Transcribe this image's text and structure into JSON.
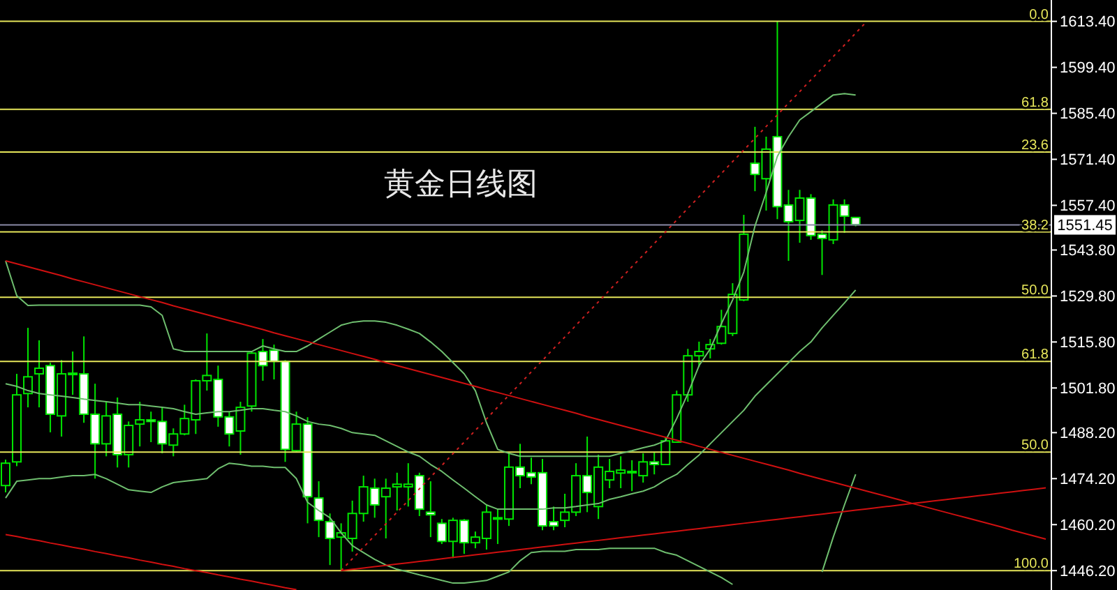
{
  "chart_data": {
    "type": "candlestick",
    "title": "黄金日线图",
    "color": "#00e600",
    "categories": [
      null,
      null,
      null,
      null,
      null,
      null,
      null,
      null,
      null,
      null,
      null,
      null,
      null,
      null,
      null,
      null,
      null,
      null,
      null,
      null,
      null,
      null,
      null,
      null,
      null,
      null,
      null,
      null,
      null,
      null,
      null,
      null,
      null,
      null,
      null,
      null,
      null,
      null,
      null,
      null,
      null,
      null,
      null,
      null,
      null,
      null,
      null,
      null,
      null,
      null,
      null,
      null,
      null,
      null,
      null,
      null,
      null,
      null,
      null,
      null,
      null,
      null,
      null,
      null,
      null,
      null,
      null,
      null,
      null,
      null,
      null,
      null,
      null,
      null,
      null,
      null,
      null,
      null,
      null,
      null,
      null,
      null,
      null,
      null,
      null,
      null,
      null,
      null,
      null,
      null,
      null,
      null,
      null,
      null
    ],
    "ohlc": [
      [
        1472.1,
        1480.0,
        1470.0,
        1478.9
      ],
      [
        1479.3,
        1506.1,
        1478.0,
        1499.7
      ],
      [
        1500.1,
        1520.1,
        1495.9,
        1505.2
      ],
      [
        1506.1,
        1516.3,
        1495.9,
        1507.8
      ],
      [
        1508.6,
        1509.5,
        1488.3,
        1493.8
      ],
      [
        1493.3,
        1510.3,
        1487.0,
        1506.1
      ],
      [
        1506.1,
        1512.9,
        1499.7,
        1506.3
      ],
      [
        1506.1,
        1517.5,
        1491.2,
        1493.8
      ],
      [
        1493.8,
        1503.1,
        1474.2,
        1484.8
      ],
      [
        1484.8,
        1497.6,
        1481.0,
        1493.3
      ],
      [
        1493.8,
        1498.9,
        1477.6,
        1481.5
      ],
      [
        1481.5,
        1491.6,
        1477.6,
        1490.4
      ],
      [
        1490.8,
        1497.6,
        1484.0,
        1492.1
      ],
      [
        1492.1,
        1494.6,
        1485.3,
        1491.6
      ],
      [
        1491.6,
        1495.9,
        1481.9,
        1484.8
      ],
      [
        1484.4,
        1489.5,
        1481.0,
        1487.8
      ],
      [
        1487.8,
        1496.7,
        1487.4,
        1492.5
      ],
      [
        1492.1,
        1504.4,
        1487.8,
        1504.0
      ],
      [
        1504.0,
        1518.4,
        1501.0,
        1505.6
      ],
      [
        1504.4,
        1508.6,
        1490.0,
        1493.0
      ],
      [
        1493.0,
        1494.6,
        1484.0,
        1487.8
      ],
      [
        1488.7,
        1497.6,
        1481.5,
        1495.9
      ],
      [
        1496.3,
        1512.9,
        1494.6,
        1512.4
      ],
      [
        1512.9,
        1516.7,
        1504.0,
        1508.6
      ],
      [
        1513.3,
        1515.0,
        1504.4,
        1509.9
      ],
      [
        1509.9,
        1510.3,
        1479.3,
        1483.1
      ],
      [
        1482.7,
        1494.6,
        1482.2,
        1490.8
      ],
      [
        1490.8,
        1492.9,
        1460.6,
        1468.7
      ],
      [
        1468.3,
        1473.4,
        1456.4,
        1461.5
      ],
      [
        1461.1,
        1463.6,
        1447.9,
        1456.0
      ],
      [
        1456.4,
        1460.6,
        1446.2,
        1457.7
      ],
      [
        1456.0,
        1467.5,
        1452.0,
        1463.6
      ],
      [
        1463.6,
        1475.1,
        1461.1,
        1471.7
      ],
      [
        1471.3,
        1474.2,
        1462.3,
        1466.2
      ],
      [
        1468.7,
        1474.2,
        1456.0,
        1471.3
      ],
      [
        1471.7,
        1476.0,
        1464.5,
        1472.5
      ],
      [
        1471.7,
        1478.9,
        1465.7,
        1472.5
      ],
      [
        1475.1,
        1476.0,
        1462.8,
        1464.9
      ],
      [
        1464.0,
        1473.4,
        1456.4,
        1463.2
      ],
      [
        1460.6,
        1461.9,
        1454.3,
        1455.1
      ],
      [
        1455.1,
        1462.3,
        1450.0,
        1461.5
      ],
      [
        1461.5,
        1461.9,
        1451.3,
        1454.7
      ],
      [
        1454.7,
        1458.1,
        1453.0,
        1456.4
      ],
      [
        1456.0,
        1466.2,
        1452.6,
        1464.0
      ],
      [
        1461.9,
        1464.9,
        1454.3,
        1462.3
      ],
      [
        1461.9,
        1481.9,
        1459.8,
        1477.7
      ],
      [
        1477.7,
        1484.8,
        1471.3,
        1475.1
      ],
      [
        1476.0,
        1480.6,
        1472.5,
        1474.7
      ],
      [
        1476.0,
        1480.2,
        1458.5,
        1459.8
      ],
      [
        1461.1,
        1465.7,
        1458.5,
        1459.8
      ],
      [
        1461.5,
        1469.6,
        1459.4,
        1464.0
      ],
      [
        1464.0,
        1478.9,
        1462.8,
        1475.1
      ],
      [
        1475.1,
        1487.0,
        1464.0,
        1470.0
      ],
      [
        1465.7,
        1481.5,
        1461.9,
        1477.7
      ],
      [
        1473.8,
        1480.2,
        1471.3,
        1476.4
      ],
      [
        1475.9,
        1481.0,
        1471.3,
        1476.8
      ],
      [
        1476.0,
        1479.8,
        1470.4,
        1476.4
      ],
      [
        1475.1,
        1481.9,
        1473.0,
        1479.3
      ],
      [
        1479.3,
        1482.3,
        1475.5,
        1478.5
      ],
      [
        1478.5,
        1487.0,
        1478.5,
        1485.7
      ],
      [
        1485.3,
        1501.0,
        1485.3,
        1499.7
      ],
      [
        1499.7,
        1513.7,
        1497.6,
        1511.6
      ],
      [
        1511.6,
        1515.9,
        1508.2,
        1512.9
      ],
      [
        1513.7,
        1516.7,
        1510.8,
        1515.0
      ],
      [
        1515.4,
        1525.6,
        1515.0,
        1520.5
      ],
      [
        1518.4,
        1533.7,
        1517.6,
        1530.3
      ],
      [
        1528.6,
        1554.5,
        1528.2,
        1548.6
      ],
      [
        1570.2,
        1581.3,
        1561.7,
        1566.8
      ],
      [
        1565.5,
        1578.3,
        1555.8,
        1574.5
      ],
      [
        1578.3,
        1613.4,
        1553.2,
        1557.0
      ],
      [
        1557.5,
        1562.1,
        1540.5,
        1552.4
      ],
      [
        1552.8,
        1562.1,
        1546.0,
        1559.6
      ],
      [
        1559.6,
        1560.8,
        1546.9,
        1548.2
      ],
      [
        1548.6,
        1549.8,
        1536.2,
        1547.3
      ],
      [
        1546.9,
        1559.2,
        1545.6,
        1557.5
      ],
      [
        1557.5,
        1559.2,
        1549.0,
        1554.1
      ],
      [
        1553.7,
        1553.7,
        1551.0,
        1551.5
      ],
      null,
      null,
      null,
      null,
      null,
      null,
      null,
      null,
      null,
      null,
      null,
      null,
      null,
      null,
      null,
      null,
      null
    ],
    "series": [
      {
        "type": "line",
        "color": "#6fbf6f",
        "values": [
          1540.5,
          1529.9,
          1526.9,
          1527.0,
          1527.0,
          1527.0,
          1527.0,
          1527.0,
          1527.0,
          1527.0,
          1527.0,
          1527.0,
          1527.0,
          1526.5,
          1523.9,
          1513.7,
          1512.9,
          1512.9,
          1512.9,
          1512.9,
          1512.9,
          1512.9,
          1512.9,
          1514.6,
          1513.7,
          1512.9,
          1512.9,
          1514.6,
          1516.7,
          1518.8,
          1520.9,
          1521.8,
          1522.2,
          1522.2,
          1521.8,
          1520.9,
          1519.7,
          1518.4,
          1515.8,
          1512.9,
          1509.5,
          1506.1,
          1501.0,
          1491.2,
          1483.1,
          1481.9,
          1481.0,
          1481.0,
          1481.0,
          1481.0,
          1481.0,
          1481.0,
          1481.0,
          1481.0,
          1481.0,
          1481.9,
          1482.7,
          1483.6,
          1484.4,
          1485.7,
          1492.5,
          1500.1,
          1508.6,
          1513.7,
          1521.4,
          1528.6,
          1537.1,
          1551.1,
          1561.3,
          1572.3,
          1578.3,
          1583.4,
          1585.9,
          1588.5,
          1591.0,
          1591.4,
          1591.0,
          null,
          null,
          null,
          null,
          null,
          null,
          null,
          null,
          null,
          null,
          null,
          null,
          null,
          null,
          null,
          null,
          null
        ]
      },
      {
        "type": "line",
        "color": "#6fbf6f",
        "values": [
          1503.1,
          1502.3,
          1501.0,
          1500.1,
          1499.7,
          1499.3,
          1498.9,
          1498.4,
          1498.0,
          1497.6,
          1497.2,
          1496.7,
          1496.7,
          1496.3,
          1495.9,
          1495.5,
          1494.6,
          1493.8,
          1494.2,
          1494.6,
          1494.6,
          1495.0,
          1495.5,
          1495.5,
          1495.0,
          1494.6,
          1493.3,
          1491.6,
          1490.8,
          1490.4,
          1489.5,
          1488.2,
          1487.8,
          1487.4,
          1485.7,
          1484.0,
          1482.3,
          1481.0,
          1478.5,
          1476.4,
          1473.8,
          1471.3,
          1468.7,
          1466.2,
          1464.9,
          1464.9,
          1464.9,
          1464.9,
          1464.9,
          1465.3,
          1465.3,
          1465.7,
          1466.2,
          1466.6,
          1467.9,
          1468.7,
          1469.6,
          1470.4,
          1471.7,
          1473.8,
          1475.5,
          1478.5,
          1481.4,
          1484.8,
          1488.2,
          1491.6,
          1495.0,
          1499.3,
          1502.7,
          1506.1,
          1509.5,
          1512.9,
          1515.8,
          1520.1,
          1523.9,
          1527.7,
          1531.6,
          null,
          null,
          null,
          null,
          null,
          null,
          null,
          null,
          null,
          null,
          null,
          null,
          null,
          null,
          null,
          null,
          null
        ]
      },
      {
        "type": "line",
        "color": "#6fbf6f",
        "values": [
          1468.3,
          1473.4,
          1473.8,
          1474.2,
          1474.2,
          1474.7,
          1475.1,
          1475.1,
          1475.5,
          1474.2,
          1472.5,
          1470.8,
          1470.4,
          1470.0,
          1471.7,
          1473.0,
          1473.4,
          1473.8,
          1474.2,
          1477.2,
          1478.9,
          1478.5,
          1478.0,
          1478.0,
          1477.6,
          1477.6,
          1474.2,
          1467.0,
          1464.5,
          1462.3,
          1457.7,
          1453.8,
          1451.7,
          1449.6,
          1447.9,
          1446.6,
          1445.8,
          1444.9,
          1444.1,
          1443.2,
          1442.4,
          1442.4,
          1442.8,
          1443.2,
          1444.5,
          1445.8,
          1449.2,
          1451.7,
          1452.1,
          1452.1,
          1452.1,
          1452.6,
          1452.6,
          1452.6,
          1453.0,
          1453.0,
          1453.0,
          1453.0,
          1453.0,
          1451.7,
          1450.9,
          1449.2,
          1447.5,
          1445.8,
          1444.1,
          1442.0,
          null,
          null,
          null,
          null,
          null,
          null,
          null,
          1445.8,
          1456.4,
          1466.2,
          1475.5,
          null,
          null,
          null,
          null,
          null,
          null,
          null,
          null,
          null,
          null,
          null,
          null,
          null,
          null,
          null,
          null,
          null
        ]
      },
      {
        "type": "line",
        "color": "#d01010",
        "values": [
          1540.5,
          1539.6,
          1538.7,
          1537.8,
          1536.9,
          1536.0,
          1535.0,
          1534.1,
          1533.2,
          1532.3,
          1531.4,
          1530.5,
          1529.6,
          1528.7,
          1527.8,
          1526.8,
          1525.9,
          1525.0,
          1524.1,
          1523.2,
          1522.3,
          1521.4,
          1520.5,
          1519.6,
          1518.6,
          1517.7,
          1516.8,
          1515.9,
          1515.0,
          1514.1,
          1513.2,
          1512.3,
          1511.4,
          1510.5,
          1509.5,
          1508.6,
          1507.7,
          1506.8,
          1505.9,
          1505.0,
          1504.1,
          1503.2,
          1502.3,
          1501.3,
          1500.4,
          1499.5,
          1498.6,
          1497.7,
          1496.8,
          1495.9,
          1495.0,
          1494.1,
          1493.1,
          1492.2,
          1491.3,
          1490.4,
          1489.5,
          1488.6,
          1487.7,
          1486.8,
          1485.9,
          1485.0,
          1484.0,
          1483.1,
          1482.2,
          1481.3,
          1480.4,
          1479.5,
          1478.6,
          1477.7,
          1476.8,
          1475.8,
          1474.9,
          1474.0,
          1473.1,
          1472.2,
          1471.3,
          1470.4,
          1469.5,
          1468.6,
          1467.7,
          1466.7,
          1465.8,
          1464.9,
          1464.0,
          1463.1,
          1462.2,
          1461.3,
          1460.4,
          1459.5,
          1458.5,
          1457.6,
          1456.7,
          1455.8
        ]
      },
      {
        "type": "line",
        "color": "#d01010",
        "values": [
          null,
          null,
          null,
          null,
          null,
          null,
          null,
          null,
          null,
          null,
          null,
          null,
          null,
          null,
          null,
          null,
          null,
          null,
          null,
          null,
          null,
          null,
          null,
          null,
          null,
          null,
          null,
          null,
          null,
          null,
          1446.2,
          1446.6,
          1447.0,
          1447.4,
          1447.8,
          1448.2,
          1448.6,
          1449.0,
          1449.4,
          1449.8,
          1450.2,
          1450.6,
          1451.0,
          1451.4,
          1451.8,
          1452.2,
          1452.6,
          1453.0,
          1453.4,
          1453.8,
          1454.2,
          1454.6,
          1455.0,
          1455.4,
          1455.8,
          1456.2,
          1456.6,
          1457.0,
          1457.4,
          1457.8,
          1458.2,
          1458.6,
          1459.0,
          1459.4,
          1459.8,
          1460.2,
          1460.6,
          1461.0,
          1461.4,
          1461.8,
          1462.2,
          1462.6,
          1463.0,
          1463.4,
          1463.8,
          1464.2,
          1464.6,
          1465.0,
          1465.4,
          1465.8,
          1466.2,
          1466.6,
          1467.0,
          1467.4,
          1467.8,
          1468.2,
          1468.6,
          1469.0,
          1469.4,
          1469.8,
          1470.2,
          1470.6,
          1471.0,
          1471.4
        ]
      },
      {
        "type": "line",
        "color": "#d01010",
        "values": [
          1457.2,
          1456.6,
          1455.9,
          1455.3,
          1454.6,
          1454.0,
          1453.3,
          1452.7,
          1452.0,
          1451.4,
          1450.7,
          1450.1,
          1449.4,
          1448.8,
          1448.1,
          1447.5,
          1446.8,
          1446.2,
          1445.6,
          1444.9,
          1444.3,
          1443.6,
          1443.0,
          1442.3,
          1441.7,
          1441.0,
          1440.4,
          null,
          null,
          null,
          null,
          null,
          null,
          null,
          null,
          null,
          null,
          null,
          null,
          null,
          null,
          null,
          null,
          null,
          null,
          null,
          null,
          null,
          null,
          null,
          null,
          null,
          null,
          null,
          null,
          null,
          null,
          null,
          null,
          null,
          null,
          null,
          null,
          null,
          null,
          null,
          null,
          null,
          null,
          null,
          null,
          null,
          null,
          null,
          null,
          null,
          null,
          null,
          null,
          null,
          null,
          null,
          null,
          null,
          null,
          null,
          null,
          null,
          null,
          null,
          null,
          null,
          null,
          null
        ]
      },
      {
        "type": "line",
        "color": "#d02020",
        "line_style": "dotted",
        "values": [
          null,
          null,
          null,
          null,
          null,
          null,
          null,
          null,
          null,
          null,
          null,
          null,
          null,
          null,
          null,
          null,
          null,
          null,
          null,
          null,
          null,
          null,
          null,
          null,
          null,
          null,
          null,
          null,
          null,
          null,
          1446.2,
          1449.8,
          1453.3,
          1456.9,
          1460.4,
          1464.0,
          1467.5,
          1471.1,
          1474.7,
          1478.2,
          1481.8,
          1485.3,
          1488.9,
          1492.4,
          1496.0,
          1499.6,
          1503.1,
          1506.7,
          1510.2,
          1513.8,
          1517.3,
          1520.9,
          1524.5,
          1528.0,
          1531.6,
          1535.1,
          1538.7,
          1542.2,
          1545.8,
          1549.3,
          1552.9,
          1556.5,
          1560.0,
          1563.6,
          1567.1,
          1570.7,
          1574.2,
          1577.8,
          1581.4,
          1584.9,
          1588.5,
          1592.0,
          1595.6,
          1599.1,
          1602.7,
          1606.2,
          1609.8,
          1613.4,
          null,
          null,
          null,
          null,
          null,
          null,
          null,
          null,
          null,
          null,
          null,
          null,
          null,
          null,
          null,
          null
        ]
      }
    ],
    "ylim": [
      1440.3,
      1619.9
    ],
    "yticks": [
      {
        "value": 1613.4,
        "label": "1613.40"
      },
      {
        "value": 1599.4,
        "label": "1599.40"
      },
      {
        "value": 1585.4,
        "label": "1585.40"
      },
      {
        "value": 1571.4,
        "label": "1571.40"
      },
      {
        "value": 1557.4,
        "label": "1557.40"
      },
      {
        "value": 1543.8,
        "label": "1543.80"
      },
      {
        "value": 1529.8,
        "label": "1529.80"
      },
      {
        "value": 1515.8,
        "label": "1515.80"
      },
      {
        "value": 1501.8,
        "label": "1501.80"
      },
      {
        "value": 1488.2,
        "label": "1488.20"
      },
      {
        "value": 1474.2,
        "label": "1474.20"
      },
      {
        "value": 1460.2,
        "label": "1460.20"
      },
      {
        "value": 1446.2,
        "label": "1446.20"
      }
    ],
    "tick_labels": "y",
    "ref_lines": [
      {
        "axis": "y",
        "value": 1551.45,
        "label": "1551.45",
        "color": "#8a8aa6"
      },
      {
        "axis": "y",
        "value": 1613.4,
        "color": "#e6e65a"
      },
      {
        "axis": "y",
        "value": 1586.6,
        "color": "#e6e65a"
      },
      {
        "axis": "y",
        "value": 1573.6,
        "color": "#e6e65a"
      },
      {
        "axis": "y",
        "value": 1549.3,
        "color": "#e6e65a"
      },
      {
        "axis": "y",
        "value": 1529.4,
        "color": "#e6e65a"
      },
      {
        "axis": "y",
        "value": 1509.9,
        "color": "#e6e65a"
      },
      {
        "axis": "y",
        "value": 1482.3,
        "color": "#e6e65a"
      },
      {
        "axis": "y",
        "value": 1446.2,
        "color": "#e6e65a"
      }
    ],
    "annotations": [
      {
        "text": "0.0",
        "y": 1613.4
      },
      {
        "text": "61.8",
        "y": 1586.6
      },
      {
        "text": "23.6",
        "y": 1573.6
      },
      {
        "text": "38.2",
        "y": 1549.3
      },
      {
        "text": "50.0",
        "y": 1529.4
      },
      {
        "text": "61.8",
        "y": 1509.9
      },
      {
        "text": "50.0",
        "y": 1482.3
      },
      {
        "text": "100.0",
        "y": 1446.2
      }
    ]
  }
}
